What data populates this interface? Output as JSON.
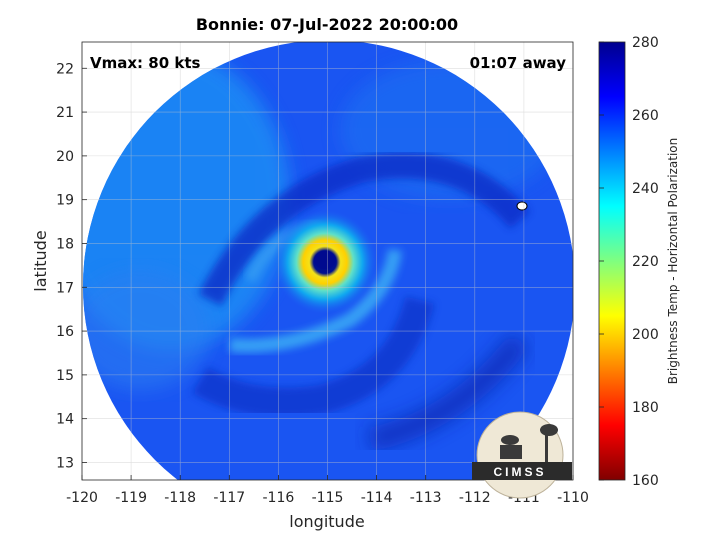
{
  "title": "Bonnie: 07-Jul-2022 20:00:00",
  "vmax": "Vmax: 80 kts",
  "time_away": "01:07 away",
  "xlabel": "longitude",
  "ylabel": "latitude",
  "colorbar_label": "Brightness Temp - Horizontal Polarization",
  "logo_text": "CIMSS",
  "map": {
    "xlim": [
      -120,
      -110
    ],
    "ylim": [
      12.6,
      22.6
    ],
    "xticks": [
      -120,
      -119,
      -118,
      -117,
      -116,
      -115,
      -114,
      -113,
      -112,
      -111,
      -110
    ],
    "yticks": [
      13,
      14,
      15,
      16,
      17,
      18,
      19,
      20,
      21,
      22
    ],
    "storm_center": [
      -115.3,
      17.5
    ],
    "swath_center": [
      -115.0,
      17.1
    ],
    "grid": true
  },
  "colorbar": {
    "range": [
      160,
      280
    ],
    "ticks": [
      160,
      180,
      200,
      220,
      240,
      260,
      280
    ],
    "colormap": "jet"
  }
}
